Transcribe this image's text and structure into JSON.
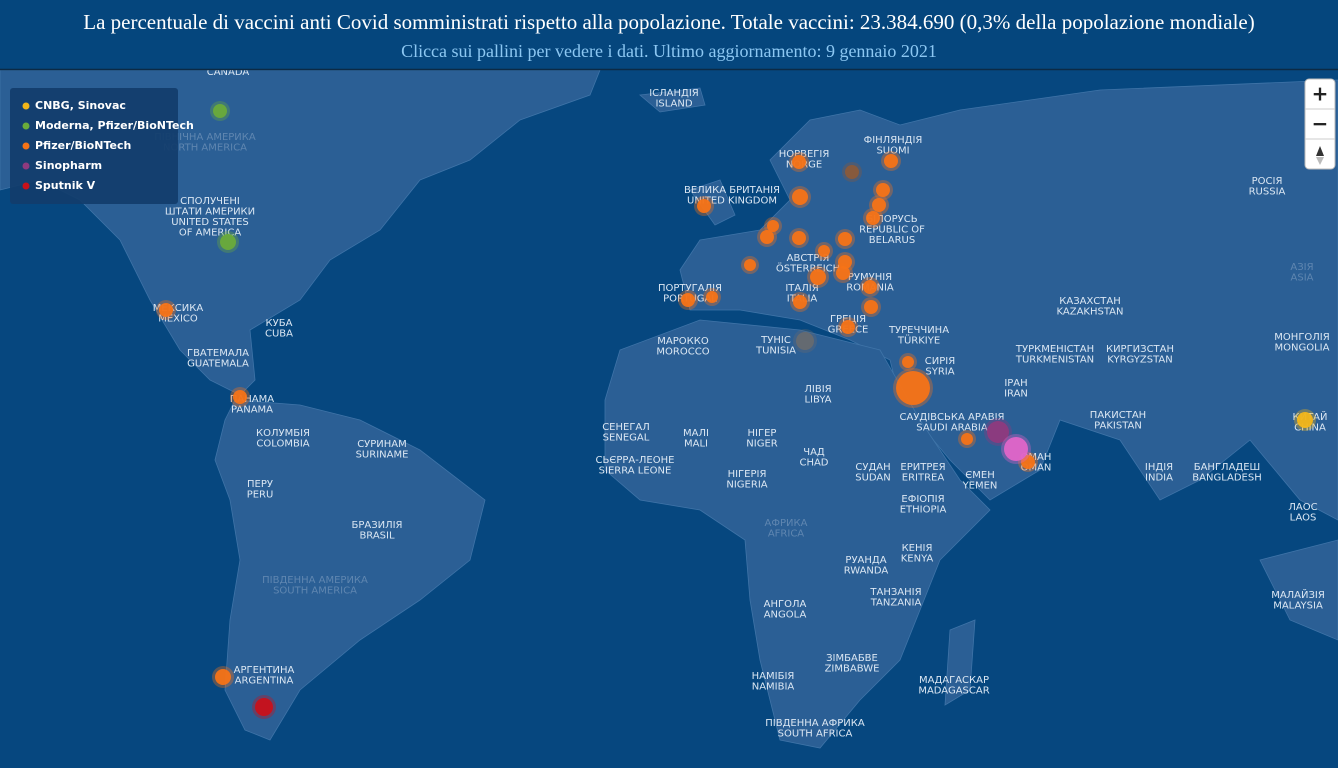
{
  "header": {
    "title": "La percentuale di vaccini anti Covid somministrati rispetto alla popolazione. Totale vaccini: 23.384.690 (0,3% della popolazione mondiale)",
    "subtitle": "Clicca sui pallini per vedere i dati. Ultimo aggiornamento: 9 gennaio 2021"
  },
  "legend": {
    "items": [
      {
        "name": "CNBG, Sinovac",
        "color": "#f2b619"
      },
      {
        "name": "Moderna, Pfizer/BioNTech",
        "color": "#6aab3a"
      },
      {
        "name": "Pfizer/BioNTech",
        "color": "#f57317"
      },
      {
        "name": "Sinopharm",
        "color": "#8e3a7e"
      },
      {
        "name": "Sputnik V",
        "color": "#c8111b"
      }
    ]
  },
  "controls": {
    "zoom_in": "+",
    "zoom_out": "−"
  },
  "map_labels": [
    [
      "CANADA"
    ],
    [
      "ІСЛАНДІЯ",
      "ISLAND"
    ],
    [
      "СПОЛУЧЕНІ",
      "ШТАТИ АМЕРИКИ",
      "UNITED STATES",
      "OF AMERICA"
    ],
    [
      "ПІВНІЧНА АМЕРИКА",
      "NORTH AMERICA"
    ],
    [
      "МЕКСИКА",
      "MEXICO"
    ],
    [
      "КУБА",
      "CUBA"
    ],
    [
      "ГВАТЕМАЛА",
      "GUATEMALA"
    ],
    [
      "ПАНАМА",
      "PANAMA"
    ],
    [
      "КОЛУМБІЯ",
      "COLOMBIA"
    ],
    [
      "СУРИНАМ",
      "SURINAME"
    ],
    [
      "ПЕРУ",
      "PERU"
    ],
    [
      "БРАЗИЛІЯ",
      "BRASIL"
    ],
    [
      "ПІВДЕННА АМЕРИКА",
      "SOUTH AMERICA"
    ],
    [
      "АРГЕНТИНА",
      "ARGENTINA"
    ],
    [
      "НОРВЕГІЯ",
      "NORGE"
    ],
    [
      "ФІНЛЯНДІЯ",
      "SUOMI"
    ],
    [
      "ВЕЛИКА БРИТАНІЯ",
      "UNITED KINGDOM"
    ],
    [
      "БІЛОРУСЬ",
      "REPUBLIC OF",
      "BELARUS"
    ],
    [
      "РОСІЯ",
      "RUSSIA"
    ],
    [
      "АВСТРІЯ",
      "ÖSTERREICH"
    ],
    [
      "РУМУНІЯ",
      "ROMANIA"
    ],
    [
      "ПОРТУГАЛІЯ",
      "PORTUGAL"
    ],
    [
      "ІТАЛІЯ",
      "ITALIA"
    ],
    [
      "ГРЕЦІЯ",
      "GREECE"
    ],
    [
      "ТУРЕЧЧИНА",
      "TÜRKIYE"
    ],
    [
      "МАРОККО",
      "MOROCCO"
    ],
    [
      "ТУНІС",
      "TUNISIA"
    ],
    [
      "СИРІЯ",
      "SYRIA"
    ],
    [
      "ЛІВІЯ",
      "LIBYA"
    ],
    [
      "ІРАН",
      "IRAN"
    ],
    [
      "КАЗАХСТАН",
      "KAZAKHSTAN"
    ],
    [
      "ТУРКМЕНІСТАН",
      "TURKMENISTAN"
    ],
    [
      "КИРГИЗСТАН",
      "KYRGYZSTAN"
    ],
    [
      "МОНГОЛІЯ",
      "MONGOLIA"
    ],
    [
      "АЗІЯ",
      "ASIA"
    ],
    [
      "САУДІВСЬКА АРАВІЯ",
      "SAUDI ARABIA"
    ],
    [
      "ОМАН",
      "OMAN"
    ],
    [
      "ПАКИСТАН",
      "PAKISTAN"
    ],
    [
      "КИТАЙ",
      "CHINA"
    ],
    [
      "СЕНЕГАЛ",
      "SENEGAL"
    ],
    [
      "МАЛІ",
      "MALI"
    ],
    [
      "НІГЕР",
      "NIGER"
    ],
    [
      "ЧАД",
      "CHAD"
    ],
    [
      "СУДАН",
      "SUDAN"
    ],
    [
      "ЕРИТРЕЯ",
      "ERITREA"
    ],
    [
      "ЄМЕН",
      "YEMEN"
    ],
    [
      "ІНДІЯ",
      "INDIA"
    ],
    [
      "БАНГЛАДЕШ",
      "BANGLADESH"
    ],
    [
      "СЬЄРРА-ЛЕОНЕ",
      "SIERRA LEONE"
    ],
    [
      "НІГЕРІЯ",
      "NIGERIA"
    ],
    [
      "ЕФІОПІЯ",
      "ETHIOPIA"
    ],
    [
      "ЛАОС",
      "LAOS"
    ],
    [
      "АФРИКА",
      "AFRICA"
    ],
    [
      "КЕНІЯ",
      "KENYA"
    ],
    [
      "РУАНДА",
      "RWANDA"
    ],
    [
      "ТАНЗАНІЯ",
      "TANZANIA"
    ],
    [
      "АНГОЛА",
      "ANGOLA"
    ],
    [
      "ЗІМБАБВЕ",
      "ZIMBABWE"
    ],
    [
      "НАМІБІЯ",
      "NAMIBIA"
    ],
    [
      "МАДАГАСКАР",
      "MADAGASCAR"
    ],
    [
      "ПІВДЕННА АФРИКА",
      "SOUTH AFRICA"
    ],
    [
      "МАЛАЙЗІЯ",
      "MALAYSIA"
    ]
  ]
}
